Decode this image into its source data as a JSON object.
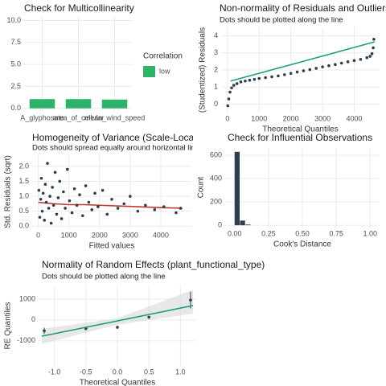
{
  "chart_data": [
    {
      "type": "bar",
      "title": "Check for Multicollinearity",
      "categories": [
        "A_glyphosate",
        "area_of_cellular",
        "mean_wind_speed"
      ],
      "values": [
        1.05,
        1.05,
        1.0
      ],
      "color": "#2fb36a",
      "ylim": [
        -0.3,
        10.5
      ],
      "yticks": [
        {
          "value": 0,
          "label": "0.0"
        },
        2.5,
        {
          "value": 5,
          "label": "5.0"
        },
        7.5,
        {
          "value": 10,
          "label": "10.0"
        }
      ],
      "grid": true,
      "legend_title": "Correlation",
      "legend_labels": [
        "low"
      ]
    },
    {
      "type": "scatter",
      "title": "Non-normality of Residuals and Outliers",
      "subtitle": "Dots should be plotted along the line",
      "x_label": "Theoretical Quantiles",
      "y_label": "(Studentized) Residuals",
      "x": [
        10,
        40,
        80,
        130,
        200,
        300,
        420,
        560,
        700,
        850,
        1000,
        1200,
        1400,
        1600,
        1800,
        2000,
        2200,
        2400,
        2600,
        2800,
        3000,
        3200,
        3400,
        3600,
        3800,
        4000,
        4200,
        4400,
        4500,
        4560,
        4600,
        4620
      ],
      "y": [
        -0.1,
        0.3,
        0.7,
        0.95,
        1.1,
        1.2,
        1.3,
        1.35,
        1.4,
        1.45,
        1.5,
        1.55,
        1.6,
        1.65,
        1.72,
        1.8,
        1.88,
        1.95,
        2.02,
        2.1,
        2.18,
        2.25,
        2.32,
        2.4,
        2.48,
        2.55,
        2.62,
        2.72,
        2.8,
        2.95,
        3.3,
        3.8
      ],
      "point_color": "#2c3e50",
      "line": {
        "x": [
          100,
          4650
        ],
        "y": [
          1.35,
          3.65
        ],
        "color": "#1f9e78"
      },
      "xlim": [
        -200,
        4800
      ],
      "ylim": [
        -0.5,
        4.5
      ],
      "xticks": [
        0,
        1000,
        2000,
        3000,
        4000
      ],
      "yticks": [
        0,
        1,
        2,
        3,
        4
      ],
      "grid": true
    },
    {
      "type": "scatter",
      "title": "Homogeneity of Variance (Scale-Location)",
      "subtitle": "Dots should spread equally around horizontal line",
      "x_label": "Fitted values",
      "y_label": "Std. Residuals (sqrt)",
      "x": [
        20,
        50,
        80,
        100,
        130,
        160,
        200,
        230,
        260,
        300,
        340,
        380,
        420,
        460,
        500,
        550,
        600,
        650,
        700,
        760,
        820,
        880,
        950,
        1020,
        1100,
        1180,
        1260,
        1350,
        1450,
        1550,
        1650,
        1750,
        1850,
        1950,
        2100,
        2250,
        2400,
        2600,
        2800,
        3000,
        3250,
        3500,
        3800,
        4100,
        4500,
        4650
      ],
      "y": [
        1.2,
        0.3,
        0.9,
        1.6,
        0.5,
        1.1,
        0.2,
        1.4,
        0.8,
        2.1,
        0.6,
        1.0,
        0.1,
        1.3,
        0.7,
        1.8,
        0.4,
        0.95,
        1.5,
        0.25,
        1.15,
        0.6,
        1.9,
        0.85,
        0.45,
        1.25,
        0.7,
        1.05,
        0.35,
        1.35,
        0.8,
        0.55,
        1.1,
        0.65,
        1.2,
        0.4,
        0.9,
        0.6,
        0.75,
        1.0,
        0.5,
        0.7,
        0.55,
        0.65,
        0.45,
        0.6
      ],
      "point_color": "#2c3e50",
      "line": {
        "x": [
          0,
          500,
          1000,
          1500,
          2000,
          3000,
          4000,
          4700
        ],
        "y": [
          0.8,
          0.75,
          0.72,
          0.72,
          0.7,
          0.66,
          0.62,
          0.6
        ],
        "color": "#c0392b"
      },
      "xlim": [
        -200,
        5000
      ],
      "ylim": [
        -0.1,
        2.4
      ],
      "xticks": [
        0,
        1000,
        2000,
        3000,
        4000
      ],
      "yticks": [
        {
          "value": 0,
          "label": "0.0"
        },
        0.5,
        {
          "value": 1,
          "label": "1.0"
        },
        1.5,
        {
          "value": 2,
          "label": "2.0"
        }
      ],
      "grid": true
    },
    {
      "type": "histogram",
      "title": "Check for Influential Observations",
      "x_label": "Cook's Distance",
      "y_label": "Count",
      "bins": [
        0,
        0.04,
        0.08,
        0.12
      ],
      "values": [
        630,
        40,
        6
      ],
      "color": "#2c3e50",
      "xlim": [
        -0.07,
        1.07
      ],
      "ylim": [
        -20,
        670
      ],
      "xticks": [
        {
          "value": 0,
          "label": "0.00"
        },
        0.25,
        {
          "value": 0.5,
          "label": "0.50"
        },
        0.75,
        {
          "value": 1,
          "label": "1.00"
        }
      ],
      "yticks": [
        0,
        200,
        400,
        600
      ],
      "grid": true
    },
    {
      "type": "scatter",
      "title": "Normality of Random Effects (plant_functional_type)",
      "subtitle": "Dots should be plotted along the line",
      "x_label": "Theoretical Quantiles",
      "y_label": "RE Quantiles",
      "x": [
        -1.16,
        -0.5,
        0,
        0.5,
        1.16
      ],
      "y": [
        -520,
        -420,
        -350,
        130,
        950
      ],
      "errors": [
        150,
        40,
        40,
        40,
        400
      ],
      "point_color": "#2c3e50",
      "line": {
        "x": [
          -1.2,
          1.2
        ],
        "y": [
          -780,
          690
        ],
        "color": "#1f9e78"
      },
      "band": {
        "x": [
          -1.2,
          0,
          1.2
        ],
        "lower": [
          -1150,
          -230,
          300
        ],
        "upper": [
          -430,
          80,
          1450
        ]
      },
      "xlim": [
        -1.25,
        1.25
      ],
      "ylim": [
        -2200,
        1650
      ],
      "xticks": [
        {
          "value": -1,
          "label": "-1.0"
        },
        -0.5,
        {
          "value": 0,
          "label": "0.0"
        },
        0.5,
        {
          "value": 1,
          "label": "1.0"
        }
      ],
      "yticks": [
        -1000,
        0,
        1000
      ],
      "grid": true
    }
  ]
}
